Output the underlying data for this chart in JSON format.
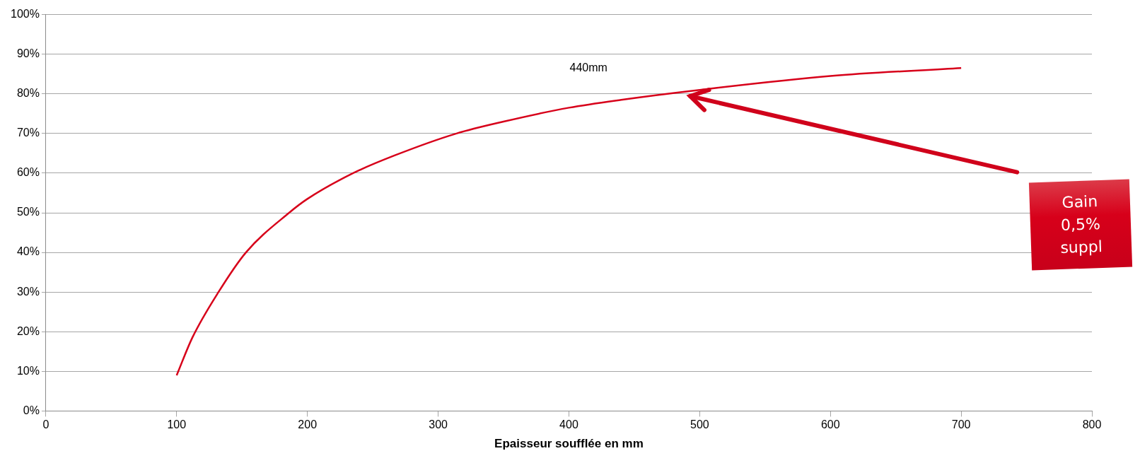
{
  "chart_data": {
    "type": "line",
    "xlabel": "Epaisseur soufflée en mm",
    "x": [
      100,
      112,
      132,
      153,
      186,
      200,
      235,
      267,
      314,
      350,
      400,
      440,
      500,
      600,
      700
    ],
    "series": [
      {
        "color": "#d7001a",
        "values": [
          9,
          18.5,
          30,
          40,
          50,
          53.5,
          60,
          64.5,
          70,
          73,
          76.5,
          78.5,
          81,
          84.5,
          86.5
        ]
      }
    ],
    "xlim": [
      0,
      800
    ],
    "xticks": [
      0,
      100,
      200,
      300,
      400,
      500,
      600,
      700,
      800
    ],
    "ylim": [
      0,
      100
    ],
    "yticks": [
      {
        "value": 0,
        "label": "0%"
      },
      {
        "value": 10,
        "label": "10%"
      },
      {
        "value": 20,
        "label": "20%"
      },
      {
        "value": 30,
        "label": "30%"
      },
      {
        "value": 40,
        "label": "40%"
      },
      {
        "value": 50,
        "label": "50%"
      },
      {
        "value": 60,
        "label": "60%"
      },
      {
        "value": 70,
        "label": "70%"
      },
      {
        "value": 80,
        "label": "80%"
      },
      {
        "value": 90,
        "label": "90%"
      },
      {
        "value": 100,
        "label": "100%"
      }
    ],
    "grid": "y",
    "legend": false,
    "marker": "none",
    "line_style": "solid",
    "annotations": [
      "440mm",
      "Gain\n0,5%\nsuppl"
    ]
  }
}
